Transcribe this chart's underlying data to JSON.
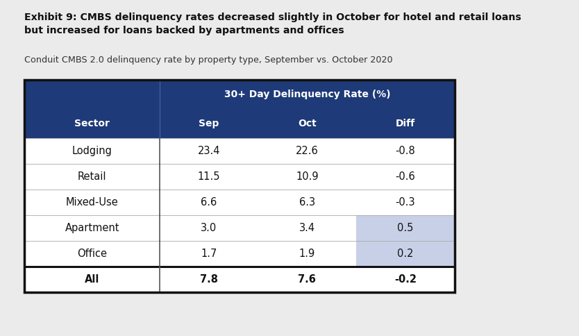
{
  "title_bold": "Exhibit 9: CMBS delinquency rates decreased slightly in October for hotel and retail loans\nbut increased for loans backed by apartments and offices",
  "subtitle": "Conduit CMBS 2.0 delinquency rate by property type, September vs. October 2020",
  "header_top": "30+ Day Delinquency Rate (%)",
  "header_cols": [
    "Sector",
    "Sep",
    "Oct",
    "Diff"
  ],
  "rows": [
    [
      "Lodging",
      "23.4",
      "22.6",
      "-0.8"
    ],
    [
      "Retail",
      "11.5",
      "10.9",
      "-0.6"
    ],
    [
      "Mixed-Use",
      "6.6",
      "6.3",
      "-0.3"
    ],
    [
      "Apartment",
      "3.0",
      "3.4",
      "0.5"
    ],
    [
      "Office",
      "1.7",
      "1.9",
      "0.2"
    ],
    [
      "All",
      "7.8",
      "7.6",
      "-0.2"
    ]
  ],
  "highlighted_rows": [
    3,
    4
  ],
  "dark_blue": "#1e3a78",
  "header_text_color": "#ffffff",
  "body_text_color": "#111111",
  "highlight_color": "#c8d0e8",
  "border_color": "#111111",
  "background_color": "#ebebeb",
  "table_bg": "#ffffff",
  "fig_width": 8.34,
  "fig_height": 4.84
}
